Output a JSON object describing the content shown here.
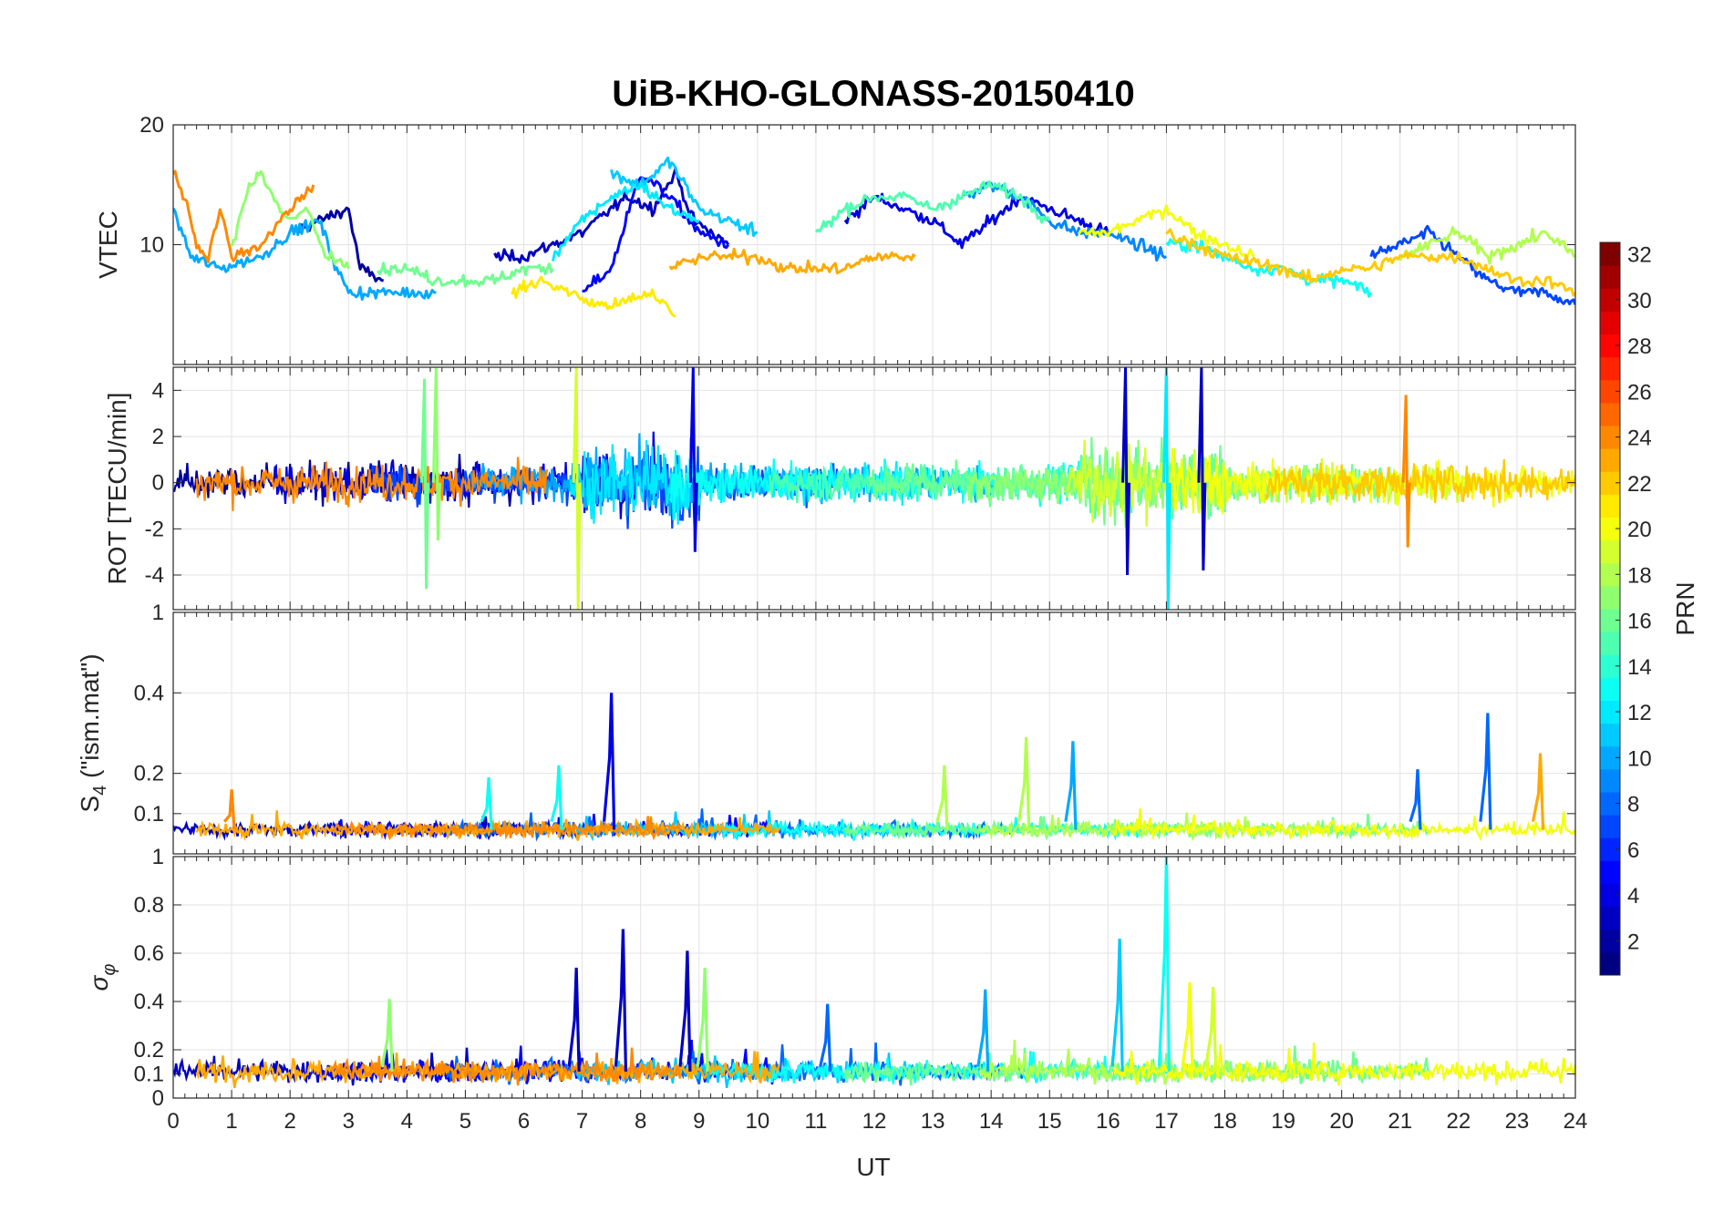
{
  "chart_data": {
    "type": "line",
    "title": "UiB-KHO-GLONASS-20150410",
    "xlabel": "UT",
    "xlim": [
      0,
      24
    ],
    "x_ticks": [
      0,
      1,
      2,
      3,
      4,
      5,
      6,
      7,
      8,
      9,
      10,
      11,
      12,
      13,
      14,
      15,
      16,
      17,
      18,
      19,
      20,
      21,
      22,
      23,
      24
    ],
    "grid": true,
    "colorbar": {
      "label": "PRN",
      "range": [
        1,
        32
      ],
      "ticks": [
        2,
        4,
        6,
        8,
        10,
        12,
        14,
        16,
        18,
        20,
        22,
        24,
        26,
        28,
        30,
        32
      ],
      "colormap": "jet",
      "colors": [
        "#00008f",
        "#0000ff",
        "#007fff",
        "#00ffff",
        "#7fff7f",
        "#ffff00",
        "#ff7f00",
        "#ff0000",
        "#800000"
      ]
    },
    "panels": [
      {
        "id": "vtec",
        "ylabel": "VTEC",
        "ylim": [
          0,
          20
        ],
        "y_ticks": [
          10,
          20
        ],
        "y_tick_labels": [
          "10",
          "20"
        ],
        "series": [
          {
            "prn": 2,
            "points": [
              [
                2.0,
                11
              ],
              [
                2.5,
                12
              ],
              [
                3.0,
                13
              ],
              [
                3.2,
                8
              ],
              [
                3.6,
                7
              ]
            ]
          },
          {
            "prn": 3,
            "points": [
              [
                5.5,
                9
              ],
              [
                6.0,
                9
              ],
              [
                7.0,
                11
              ],
              [
                7.5,
                13
              ],
              [
                7.8,
                14
              ],
              [
                8.2,
                13
              ],
              [
                8.6,
                16
              ],
              [
                8.9,
                12
              ],
              [
                9.5,
                10
              ]
            ]
          },
          {
            "prn": 4,
            "points": [
              [
                11.5,
                12
              ],
              [
                12.0,
                14
              ],
              [
                12.5,
                13
              ],
              [
                13.0,
                12
              ],
              [
                13.5,
                10
              ],
              [
                14.0,
                12
              ],
              [
                14.5,
                14
              ],
              [
                15.0,
                13
              ],
              [
                15.5,
                12
              ],
              [
                16.0,
                11
              ]
            ]
          },
          {
            "prn": 5,
            "points": [
              [
                7.0,
                6
              ],
              [
                7.5,
                8
              ],
              [
                8.0,
                16
              ],
              [
                8.5,
                14
              ],
              [
                9.0,
                11
              ],
              [
                9.5,
                10
              ]
            ]
          },
          {
            "prn": 7,
            "points": [
              [
                20.5,
                9
              ],
              [
                21.0,
                10
              ],
              [
                21.5,
                11
              ],
              [
                22.0,
                9
              ],
              [
                22.5,
                7
              ],
              [
                23.0,
                6
              ],
              [
                23.5,
                6
              ],
              [
                24.0,
                5
              ]
            ]
          },
          {
            "prn": 9,
            "points": [
              [
                13.5,
                14
              ],
              [
                14.0,
                15
              ],
              [
                14.5,
                14
              ],
              [
                15.0,
                12
              ],
              [
                15.5,
                11
              ],
              [
                16.0,
                11
              ],
              [
                16.5,
                10
              ],
              [
                17.0,
                9
              ]
            ]
          },
          {
            "prn": 10,
            "points": [
              [
                0.0,
                13
              ],
              [
                0.3,
                9
              ],
              [
                0.8,
                8
              ],
              [
                1.5,
                9
              ],
              [
                2.0,
                11
              ],
              [
                2.5,
                12
              ],
              [
                2.8,
                8
              ],
              [
                3.0,
                6
              ],
              [
                3.5,
                6
              ],
              [
                4.5,
                6
              ]
            ]
          },
          {
            "prn": 11,
            "points": [
              [
                7.5,
                16
              ],
              [
                8.0,
                15
              ],
              [
                8.5,
                17
              ],
              [
                9.0,
                13
              ],
              [
                9.5,
                12
              ],
              [
                10.0,
                11
              ]
            ]
          },
          {
            "prn": 12,
            "points": [
              [
                6.5,
                9
              ],
              [
                7.0,
                12
              ],
              [
                7.5,
                14
              ],
              [
                8.0,
                15
              ],
              [
                8.5,
                13
              ],
              [
                9.0,
                12
              ]
            ]
          },
          {
            "prn": 13,
            "points": [
              [
                17.0,
                10
              ],
              [
                17.5,
                10
              ],
              [
                18.0,
                9
              ],
              [
                18.5,
                8
              ],
              [
                19.0,
                8
              ],
              [
                19.5,
                7
              ],
              [
                20.0,
                7
              ],
              [
                20.5,
                6
              ]
            ]
          },
          {
            "prn": 15,
            "points": [
              [
                11.0,
                11
              ],
              [
                11.5,
                13
              ],
              [
                12.0,
                14
              ],
              [
                12.5,
                14
              ],
              [
                13.0,
                13
              ],
              [
                13.5,
                14
              ],
              [
                14.0,
                15
              ],
              [
                14.5,
                14
              ],
              [
                15.0,
                12
              ]
            ]
          },
          {
            "prn": 16,
            "points": [
              [
                3.5,
                8
              ],
              [
                4.0,
                8
              ],
              [
                4.5,
                7
              ],
              [
                5.0,
                7
              ],
              [
                5.5,
                7
              ],
              [
                6.0,
                8
              ],
              [
                6.5,
                8
              ]
            ]
          },
          {
            "prn": 17,
            "points": [
              [
                1.0,
                10
              ],
              [
                1.3,
                15
              ],
              [
                1.5,
                16
              ],
              [
                1.8,
                13
              ],
              [
                2.0,
                12
              ],
              [
                2.3,
                13
              ],
              [
                2.6,
                9
              ],
              [
                3.0,
                8
              ]
            ]
          },
          {
            "prn": 18,
            "points": [
              [
                21.0,
                9
              ],
              [
                21.5,
                10
              ],
              [
                22.0,
                11
              ],
              [
                22.5,
                9
              ],
              [
                23.0,
                10
              ],
              [
                23.5,
                11
              ],
              [
                24.0,
                9
              ]
            ]
          },
          {
            "prn": 20,
            "points": [
              [
                15.5,
                11
              ],
              [
                16.0,
                11
              ],
              [
                16.5,
                12
              ],
              [
                17.0,
                13
              ],
              [
                17.5,
                11
              ],
              [
                18.0,
                10
              ],
              [
                18.5,
                9
              ]
            ]
          },
          {
            "prn": 21,
            "points": [
              [
                5.8,
                6
              ],
              [
                6.3,
                7
              ],
              [
                6.8,
                6
              ],
              [
                7.2,
                5
              ],
              [
                7.6,
                5
              ],
              [
                8.2,
                6
              ],
              [
                8.6,
                4
              ]
            ]
          },
          {
            "prn": 22,
            "points": [
              [
                17.0,
                11
              ],
              [
                17.5,
                10
              ],
              [
                18.0,
                9
              ],
              [
                19.0,
                8
              ],
              [
                19.5,
                7
              ],
              [
                20.0,
                8
              ],
              [
                20.5,
                8
              ],
              [
                21.0,
                9
              ],
              [
                21.5,
                9
              ],
              [
                22.0,
                9
              ],
              [
                22.5,
                8
              ],
              [
                23.0,
                7
              ],
              [
                23.5,
                7
              ],
              [
                24.0,
                6
              ]
            ]
          },
          {
            "prn": 23,
            "points": [
              [
                8.5,
                8
              ],
              [
                9.0,
                9
              ],
              [
                9.5,
                9
              ],
              [
                10.0,
                9
              ],
              [
                10.5,
                8
              ],
              [
                11.0,
                8
              ],
              [
                11.5,
                8
              ],
              [
                12.0,
                9
              ],
              [
                12.7,
                9
              ]
            ]
          },
          {
            "prn": 24,
            "points": [
              [
                0.0,
                16
              ],
              [
                0.2,
                14
              ],
              [
                0.4,
                10
              ],
              [
                0.6,
                9
              ],
              [
                0.8,
                13
              ],
              [
                1.0,
                9
              ],
              [
                1.5,
                10
              ],
              [
                2.0,
                13
              ],
              [
                2.4,
                15
              ]
            ]
          }
        ]
      },
      {
        "id": "rot",
        "ylabel": "ROT [TECU/min]",
        "ylim": [
          -5.5,
          5
        ],
        "y_ticks": [
          -4,
          -2,
          0,
          2,
          4
        ],
        "y_tick_labels": [
          "-4",
          "-2",
          "0",
          "2",
          "4"
        ],
        "spikes": [
          {
            "x": 4.3,
            "top": 4.5,
            "bottom": -4.6,
            "prn": 16
          },
          {
            "x": 4.5,
            "top": 5.0,
            "bottom": -2.5,
            "prn": 17
          },
          {
            "x": 6.9,
            "top": 5.0,
            "bottom": -5.5,
            "prn": 19
          },
          {
            "x": 8.9,
            "top": 5.0,
            "bottom": -3.0,
            "prn": 4
          },
          {
            "x": 16.3,
            "top": 5.0,
            "bottom": -4.0,
            "prn": 3
          },
          {
            "x": 17.0,
            "top": 5.0,
            "bottom": -5.5,
            "prn": 12
          },
          {
            "x": 17.6,
            "top": 5.0,
            "bottom": -3.8,
            "prn": 3
          },
          {
            "x": 21.1,
            "top": 3.8,
            "bottom": -2.8,
            "prn": 24
          }
        ]
      },
      {
        "id": "s4",
        "ylabel": "S4 (\"ism.mat\")",
        "ylim": [
          0,
          0.6
        ],
        "y_ticks": [
          0.1,
          0.2,
          0.4
        ],
        "y_tick_labels": [
          "0.1",
          "0.2",
          "0.4"
        ],
        "top_tick_label": "1",
        "spikes": [
          {
            "x": 7.5,
            "value": 0.4,
            "prn": 4
          },
          {
            "x": 5.4,
            "value": 0.19,
            "prn": 13
          },
          {
            "x": 6.6,
            "value": 0.22,
            "prn": 13
          },
          {
            "x": 13.2,
            "value": 0.22,
            "prn": 18
          },
          {
            "x": 14.6,
            "value": 0.29,
            "prn": 18
          },
          {
            "x": 15.4,
            "value": 0.28,
            "prn": 10
          },
          {
            "x": 21.3,
            "value": 0.21,
            "prn": 8
          },
          {
            "x": 22.5,
            "value": 0.35,
            "prn": 8
          },
          {
            "x": 23.4,
            "value": 0.25,
            "prn": 23
          },
          {
            "x": 1.0,
            "value": 0.16,
            "prn": 24
          }
        ]
      },
      {
        "id": "sigma_phi",
        "ylabel": "σφ",
        "ylim": [
          0,
          1
        ],
        "y_ticks": [
          0,
          0.1,
          0.2,
          0.4,
          0.6,
          0.8
        ],
        "y_tick_labels": [
          "0",
          "0.1",
          "0.2",
          "0.4",
          "0.6",
          "0.8"
        ],
        "top_tick_label": "1",
        "spikes": [
          {
            "x": 3.7,
            "value": 0.41,
            "prn": 17
          },
          {
            "x": 6.9,
            "value": 0.54,
            "prn": 3
          },
          {
            "x": 7.7,
            "value": 0.7,
            "prn": 3
          },
          {
            "x": 8.8,
            "value": 0.61,
            "prn": 3
          },
          {
            "x": 9.1,
            "value": 0.54,
            "prn": 17
          },
          {
            "x": 11.2,
            "value": 0.39,
            "prn": 8
          },
          {
            "x": 13.9,
            "value": 0.45,
            "prn": 10
          },
          {
            "x": 16.2,
            "value": 0.66,
            "prn": 11
          },
          {
            "x": 17.0,
            "value": 1.0,
            "prn": 13
          },
          {
            "x": 17.4,
            "value": 0.48,
            "prn": 20
          },
          {
            "x": 17.8,
            "value": 0.46,
            "prn": 19
          }
        ]
      }
    ]
  }
}
